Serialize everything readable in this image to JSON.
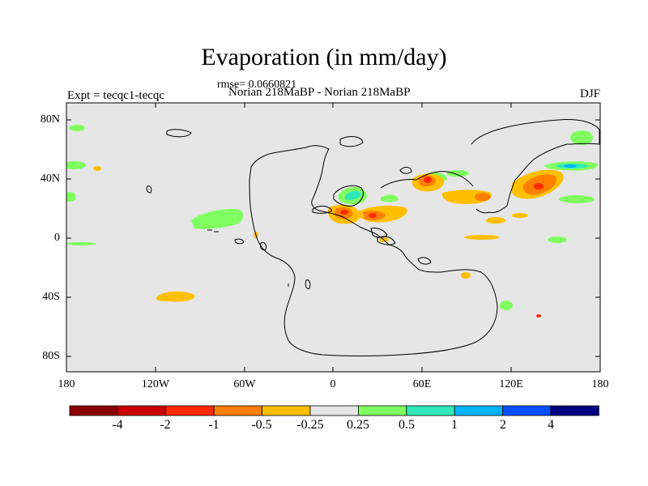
{
  "title": "Evaporation (in mm/day)",
  "rmse_label": "rmse= 0.0660821",
  "left_label": "Expt = tecqc1-tecqc",
  "center_label": "Norian 218MaBP - Norian 218MaBP",
  "right_label": "DJF",
  "y_ticks": [
    "80N",
    "40N",
    "0",
    "40S",
    "80S"
  ],
  "x_ticks": [
    "180",
    "120W",
    "60W",
    "0",
    "60E",
    "120E",
    "180"
  ],
  "colorbar": {
    "colors": [
      "#8b0000",
      "#cc0000",
      "#ff2a00",
      "#ff7f00",
      "#ffbf00",
      "#e6e6e6",
      "#80ff60",
      "#2ee8b8",
      "#00b4ff",
      "#0050ff",
      "#000080"
    ],
    "labels": [
      "-4",
      "-2",
      "-1",
      "-0.5",
      "-0.25",
      "0.25",
      "0.5",
      "1",
      "2",
      "4"
    ]
  },
  "colors": {
    "background": "#e6e6e6",
    "coastline": "#000000"
  }
}
